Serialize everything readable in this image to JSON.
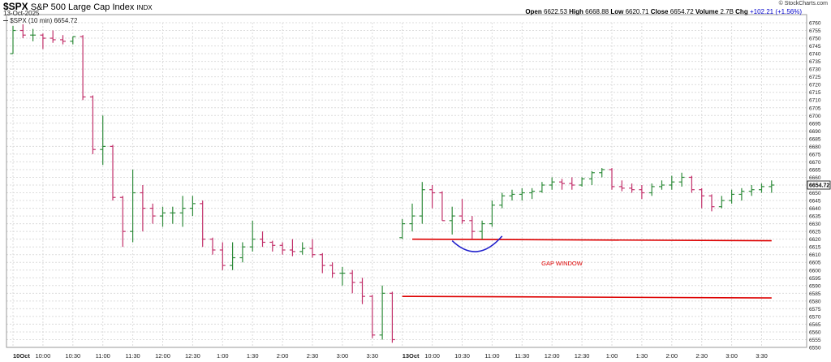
{
  "header": {
    "symbol": "$SPX",
    "name": "S&P 500 Large Cap Index",
    "exchange": "INDX",
    "date": "13-Oct-2025",
    "legend": "$SPX (10 min) 6654.72",
    "copyright": "© StockCharts.com",
    "ohlc": {
      "open_label": "Open",
      "open": "6622.53",
      "high_label": "High",
      "high": "6668.88",
      "low_label": "Low",
      "low": "6620.71",
      "close_label": "Close",
      "close": "6654.72",
      "volume_label": "Volume",
      "volume": "2.7B",
      "chg_label": "Chg",
      "chg": "+102.21 (+1.56%)",
      "chg_color": "#0000cc"
    }
  },
  "chart_data": {
    "type": "bar",
    "ylim": [
      6550,
      6760
    ],
    "y_ticks": [
      6550,
      6555,
      6560,
      6565,
      6570,
      6575,
      6580,
      6585,
      6590,
      6595,
      6600,
      6605,
      6610,
      6615,
      6620,
      6625,
      6630,
      6635,
      6640,
      6645,
      6650,
      6655,
      6660,
      6665,
      6670,
      6675,
      6680,
      6685,
      6690,
      6695,
      6700,
      6705,
      6710,
      6715,
      6720,
      6725,
      6730,
      6735,
      6740,
      6745,
      6750,
      6755,
      6760
    ],
    "x_ticks": [
      {
        "label": "10Oct",
        "bar": 0,
        "bold": true
      },
      {
        "label": "10:00",
        "bar": 3
      },
      {
        "label": "10:30",
        "bar": 6
      },
      {
        "label": "11:00",
        "bar": 9
      },
      {
        "label": "11:30",
        "bar": 12
      },
      {
        "label": "12:00",
        "bar": 15
      },
      {
        "label": "12:30",
        "bar": 18
      },
      {
        "label": "1:00",
        "bar": 21
      },
      {
        "label": "1:30",
        "bar": 24
      },
      {
        "label": "2:00",
        "bar": 27
      },
      {
        "label": "2:30",
        "bar": 30
      },
      {
        "label": "3:00",
        "bar": 33
      },
      {
        "label": "3:30",
        "bar": 36
      },
      {
        "label": "13Oct",
        "bar": 39,
        "bold": true
      },
      {
        "label": "10:00",
        "bar": 42
      },
      {
        "label": "10:30",
        "bar": 45
      },
      {
        "label": "11:00",
        "bar": 48
      },
      {
        "label": "11:30",
        "bar": 51
      },
      {
        "label": "12:00",
        "bar": 54
      },
      {
        "label": "12:30",
        "bar": 57
      },
      {
        "label": "1:00",
        "bar": 60
      },
      {
        "label": "1:30",
        "bar": 63
      },
      {
        "label": "2:00",
        "bar": 66
      },
      {
        "label": "2:30",
        "bar": 69
      },
      {
        "label": "3:00",
        "bar": 72
      },
      {
        "label": "3:30",
        "bar": 75
      }
    ],
    "bars": [
      [
        6740,
        6758,
        6740,
        6755
      ],
      [
        6755,
        6759,
        6750,
        6752
      ],
      [
        6752,
        6756,
        6748,
        6752
      ],
      [
        6752,
        6753,
        6743,
        6750
      ],
      [
        6750,
        6755,
        6747,
        6749
      ],
      [
        6749,
        6752,
        6746,
        6748
      ],
      [
        6748,
        6751,
        6746,
        6751
      ],
      [
        6751,
        6752,
        6710,
        6712
      ],
      [
        6712,
        6713,
        6675,
        6678
      ],
      [
        6678,
        6700,
        6668,
        6680
      ],
      [
        6680,
        6681,
        6645,
        6647
      ],
      [
        6647,
        6648,
        6615,
        6625
      ],
      [
        6625,
        6665,
        6618,
        6650
      ],
      [
        6650,
        6655,
        6625,
        6640
      ],
      [
        6640,
        6643,
        6630,
        6635
      ],
      [
        6635,
        6641,
        6628,
        6637
      ],
      [
        6637,
        6641,
        6630,
        6637
      ],
      [
        6637,
        6648,
        6628,
        6640
      ],
      [
        6640,
        6648,
        6635,
        6643
      ],
      [
        6643,
        6645,
        6615,
        6620
      ],
      [
        6620,
        6621,
        6610,
        6613
      ],
      [
        6613,
        6618,
        6600,
        6603
      ],
      [
        6603,
        6618,
        6600,
        6608
      ],
      [
        6608,
        6618,
        6605,
        6615
      ],
      [
        6615,
        6632,
        6612,
        6620
      ],
      [
        6620,
        6625,
        6615,
        6618
      ],
      [
        6618,
        6619,
        6612,
        6616
      ],
      [
        6616,
        6618,
        6610,
        6613
      ],
      [
        6613,
        6620,
        6609,
        6612
      ],
      [
        6612,
        6618,
        6610,
        6614
      ],
      [
        6614,
        6620,
        6608,
        6610
      ],
      [
        6610,
        6611,
        6598,
        6603
      ],
      [
        6603,
        6605,
        6595,
        6598
      ],
      [
        6598,
        6602,
        6590,
        6598
      ],
      [
        6598,
        6600,
        6585,
        6592
      ],
      [
        6592,
        6595,
        6578,
        6583
      ],
      [
        6583,
        6584,
        6556,
        6558
      ],
      [
        6558,
        6590,
        6555,
        6585
      ],
      [
        6585,
        6586,
        6553,
        6555
      ],
      [
        6621,
        6633,
        6620,
        6630
      ],
      [
        6630,
        6643,
        6625,
        6635
      ],
      [
        6635,
        6657,
        6630,
        6652
      ],
      [
        6652,
        6655,
        6640,
        6650
      ],
      [
        6650,
        6651,
        6632,
        6632
      ],
      [
        6632,
        6641,
        6623,
        6635
      ],
      [
        6635,
        6646,
        6630,
        6632
      ],
      [
        6632,
        6635,
        6620,
        6625
      ],
      [
        6625,
        6632,
        6620,
        6630
      ],
      [
        6630,
        6645,
        6628,
        6642
      ],
      [
        6642,
        6650,
        6640,
        6648
      ],
      [
        6648,
        6652,
        6645,
        6649
      ],
      [
        6649,
        6653,
        6645,
        6650
      ],
      [
        6650,
        6653,
        6646,
        6651
      ],
      [
        6651,
        6657,
        6650,
        6655
      ],
      [
        6655,
        6660,
        6652,
        6657
      ],
      [
        6657,
        6659,
        6652,
        6656
      ],
      [
        6656,
        6660,
        6652,
        6655
      ],
      [
        6655,
        6660,
        6654,
        6659
      ],
      [
        6659,
        6664,
        6655,
        6663
      ],
      [
        6663,
        6666,
        6660,
        6665
      ],
      [
        6665,
        6666,
        6652,
        6654
      ],
      [
        6654,
        6658,
        6651,
        6653
      ],
      [
        6653,
        6656,
        6650,
        6652
      ],
      [
        6652,
        6655,
        6646,
        6650
      ],
      [
        6650,
        6656,
        6648,
        6654
      ],
      [
        6654,
        6658,
        6652,
        6655
      ],
      [
        6655,
        6661,
        6652,
        6657
      ],
      [
        6657,
        6663,
        6654,
        6660
      ],
      [
        6660,
        6661,
        6650,
        6652
      ],
      [
        6652,
        6653,
        6640,
        6648
      ],
      [
        6648,
        6649,
        6638,
        6641
      ],
      [
        6641,
        6648,
        6640,
        6645
      ],
      [
        6645,
        6652,
        6643,
        6649
      ],
      [
        6649,
        6653,
        6645,
        6651
      ],
      [
        6651,
        6655,
        6648,
        6652
      ],
      [
        6652,
        6656,
        6650,
        6654
      ],
      [
        6654,
        6658,
        6650,
        6655
      ]
    ],
    "annotations": [
      {
        "kind": "line",
        "from": {
          "bar": 40,
          "y": 6620
        },
        "to": {
          "bar": 76,
          "y": 6619
        },
        "color": "#dd0000"
      },
      {
        "kind": "line",
        "from": {
          "bar": 39,
          "y": 6583
        },
        "to": {
          "bar": 76,
          "y": 6582
        },
        "color": "#dd0000"
      },
      {
        "kind": "arc",
        "from": {
          "bar": 44,
          "y": 6619
        },
        "to": {
          "bar": 49,
          "y": 6622
        },
        "low": 6612,
        "color": "#2020cc"
      },
      {
        "kind": "text",
        "text": "GAP WINDOW",
        "at": {
          "bar": 55,
          "y": 6603
        },
        "color": "#dd0000"
      }
    ],
    "colors": {
      "up": "#2e8b3a",
      "down": "#c2306a",
      "grid": "#dcdcdc",
      "axis": "#999999",
      "last": "#000000"
    }
  }
}
